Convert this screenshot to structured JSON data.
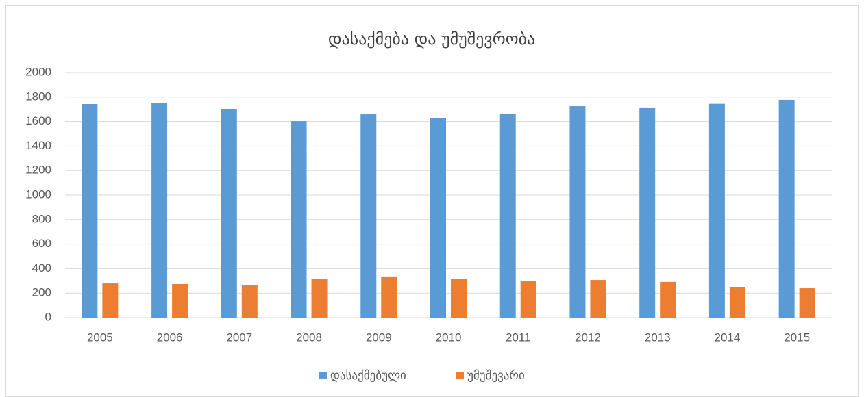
{
  "chart_data": {
    "type": "bar",
    "title": "დასაქმება და უმუშევრობა",
    "categories": [
      "2005",
      "2006",
      "2007",
      "2008",
      "2009",
      "2010",
      "2011",
      "2012",
      "2013",
      "2014",
      "2015"
    ],
    "series": [
      {
        "name": "დასაქმებული",
        "color": "#5b9bd5",
        "values": [
          1743,
          1749,
          1704,
          1603,
          1659,
          1626,
          1665,
          1726,
          1710,
          1745,
          1777
        ]
      },
      {
        "name": "უმუშევარი",
        "color": "#ed7d31",
        "values": [
          279,
          274,
          263,
          318,
          336,
          318,
          296,
          307,
          291,
          246,
          240
        ]
      }
    ],
    "ylim": [
      0,
      2000
    ],
    "yticks": [
      0,
      200,
      400,
      600,
      800,
      1000,
      1200,
      1400,
      1600,
      1800,
      2000
    ],
    "grid": true,
    "legend": "bottom"
  }
}
